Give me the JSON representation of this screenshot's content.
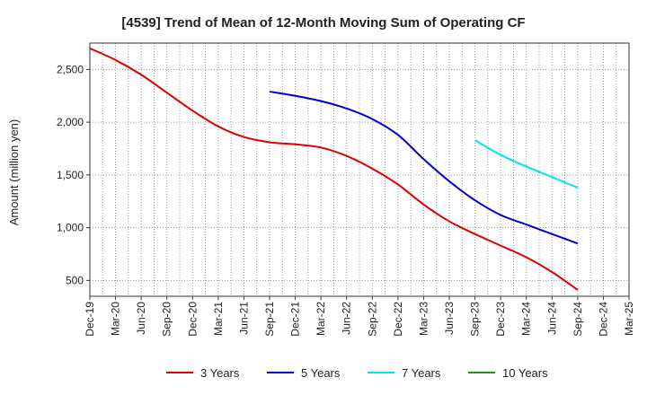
{
  "chart_data": {
    "type": "line",
    "title": "[4539]  Trend of Mean of 12-Month Moving Sum of Operating CF",
    "xlabel": "",
    "ylabel": "Amount (million yen)",
    "ylim": [
      350,
      2750
    ],
    "yticks": [
      500,
      1000,
      1500,
      2000,
      2500
    ],
    "ytick_labels": [
      "500",
      "1,000",
      "1,500",
      "2,000",
      "2,500"
    ],
    "categories": [
      "Dec-19",
      "Mar-20",
      "Jun-20",
      "Sep-20",
      "Dec-20",
      "Mar-21",
      "Jun-21",
      "Sep-21",
      "Dec-21",
      "Mar-22",
      "Jun-22",
      "Sep-22",
      "Dec-22",
      "Mar-23",
      "Jun-23",
      "Sep-23",
      "Dec-23",
      "Mar-24",
      "Jun-24",
      "Sep-24",
      "Dec-24",
      "Mar-25"
    ],
    "grid": true,
    "legend_position": "bottom",
    "series": [
      {
        "name": "3 Years",
        "color": "#dd0000",
        "values": [
          2700,
          2590,
          2450,
          2280,
          2110,
          1960,
          1860,
          1810,
          1790,
          1760,
          1680,
          1560,
          1410,
          1220,
          1060,
          940,
          830,
          720,
          580,
          410,
          null,
          null
        ]
      },
      {
        "name": "5 Years",
        "color": "#0000cc",
        "values": [
          null,
          null,
          null,
          null,
          null,
          null,
          null,
          2290,
          2250,
          2200,
          2130,
          2030,
          1880,
          1650,
          1440,
          1260,
          1120,
          1030,
          940,
          850,
          null,
          null
        ]
      },
      {
        "name": "7 Years",
        "color": "#00e5ee",
        "values": [
          null,
          null,
          null,
          null,
          null,
          null,
          null,
          null,
          null,
          null,
          null,
          null,
          null,
          null,
          null,
          1830,
          1690,
          1580,
          1480,
          1380,
          null,
          null
        ]
      },
      {
        "name": "10 Years",
        "color": "#228b22",
        "values": [
          null,
          null,
          null,
          null,
          null,
          null,
          null,
          null,
          null,
          null,
          null,
          null,
          null,
          null,
          null,
          null,
          null,
          null,
          null,
          null,
          null,
          null
        ]
      }
    ]
  }
}
